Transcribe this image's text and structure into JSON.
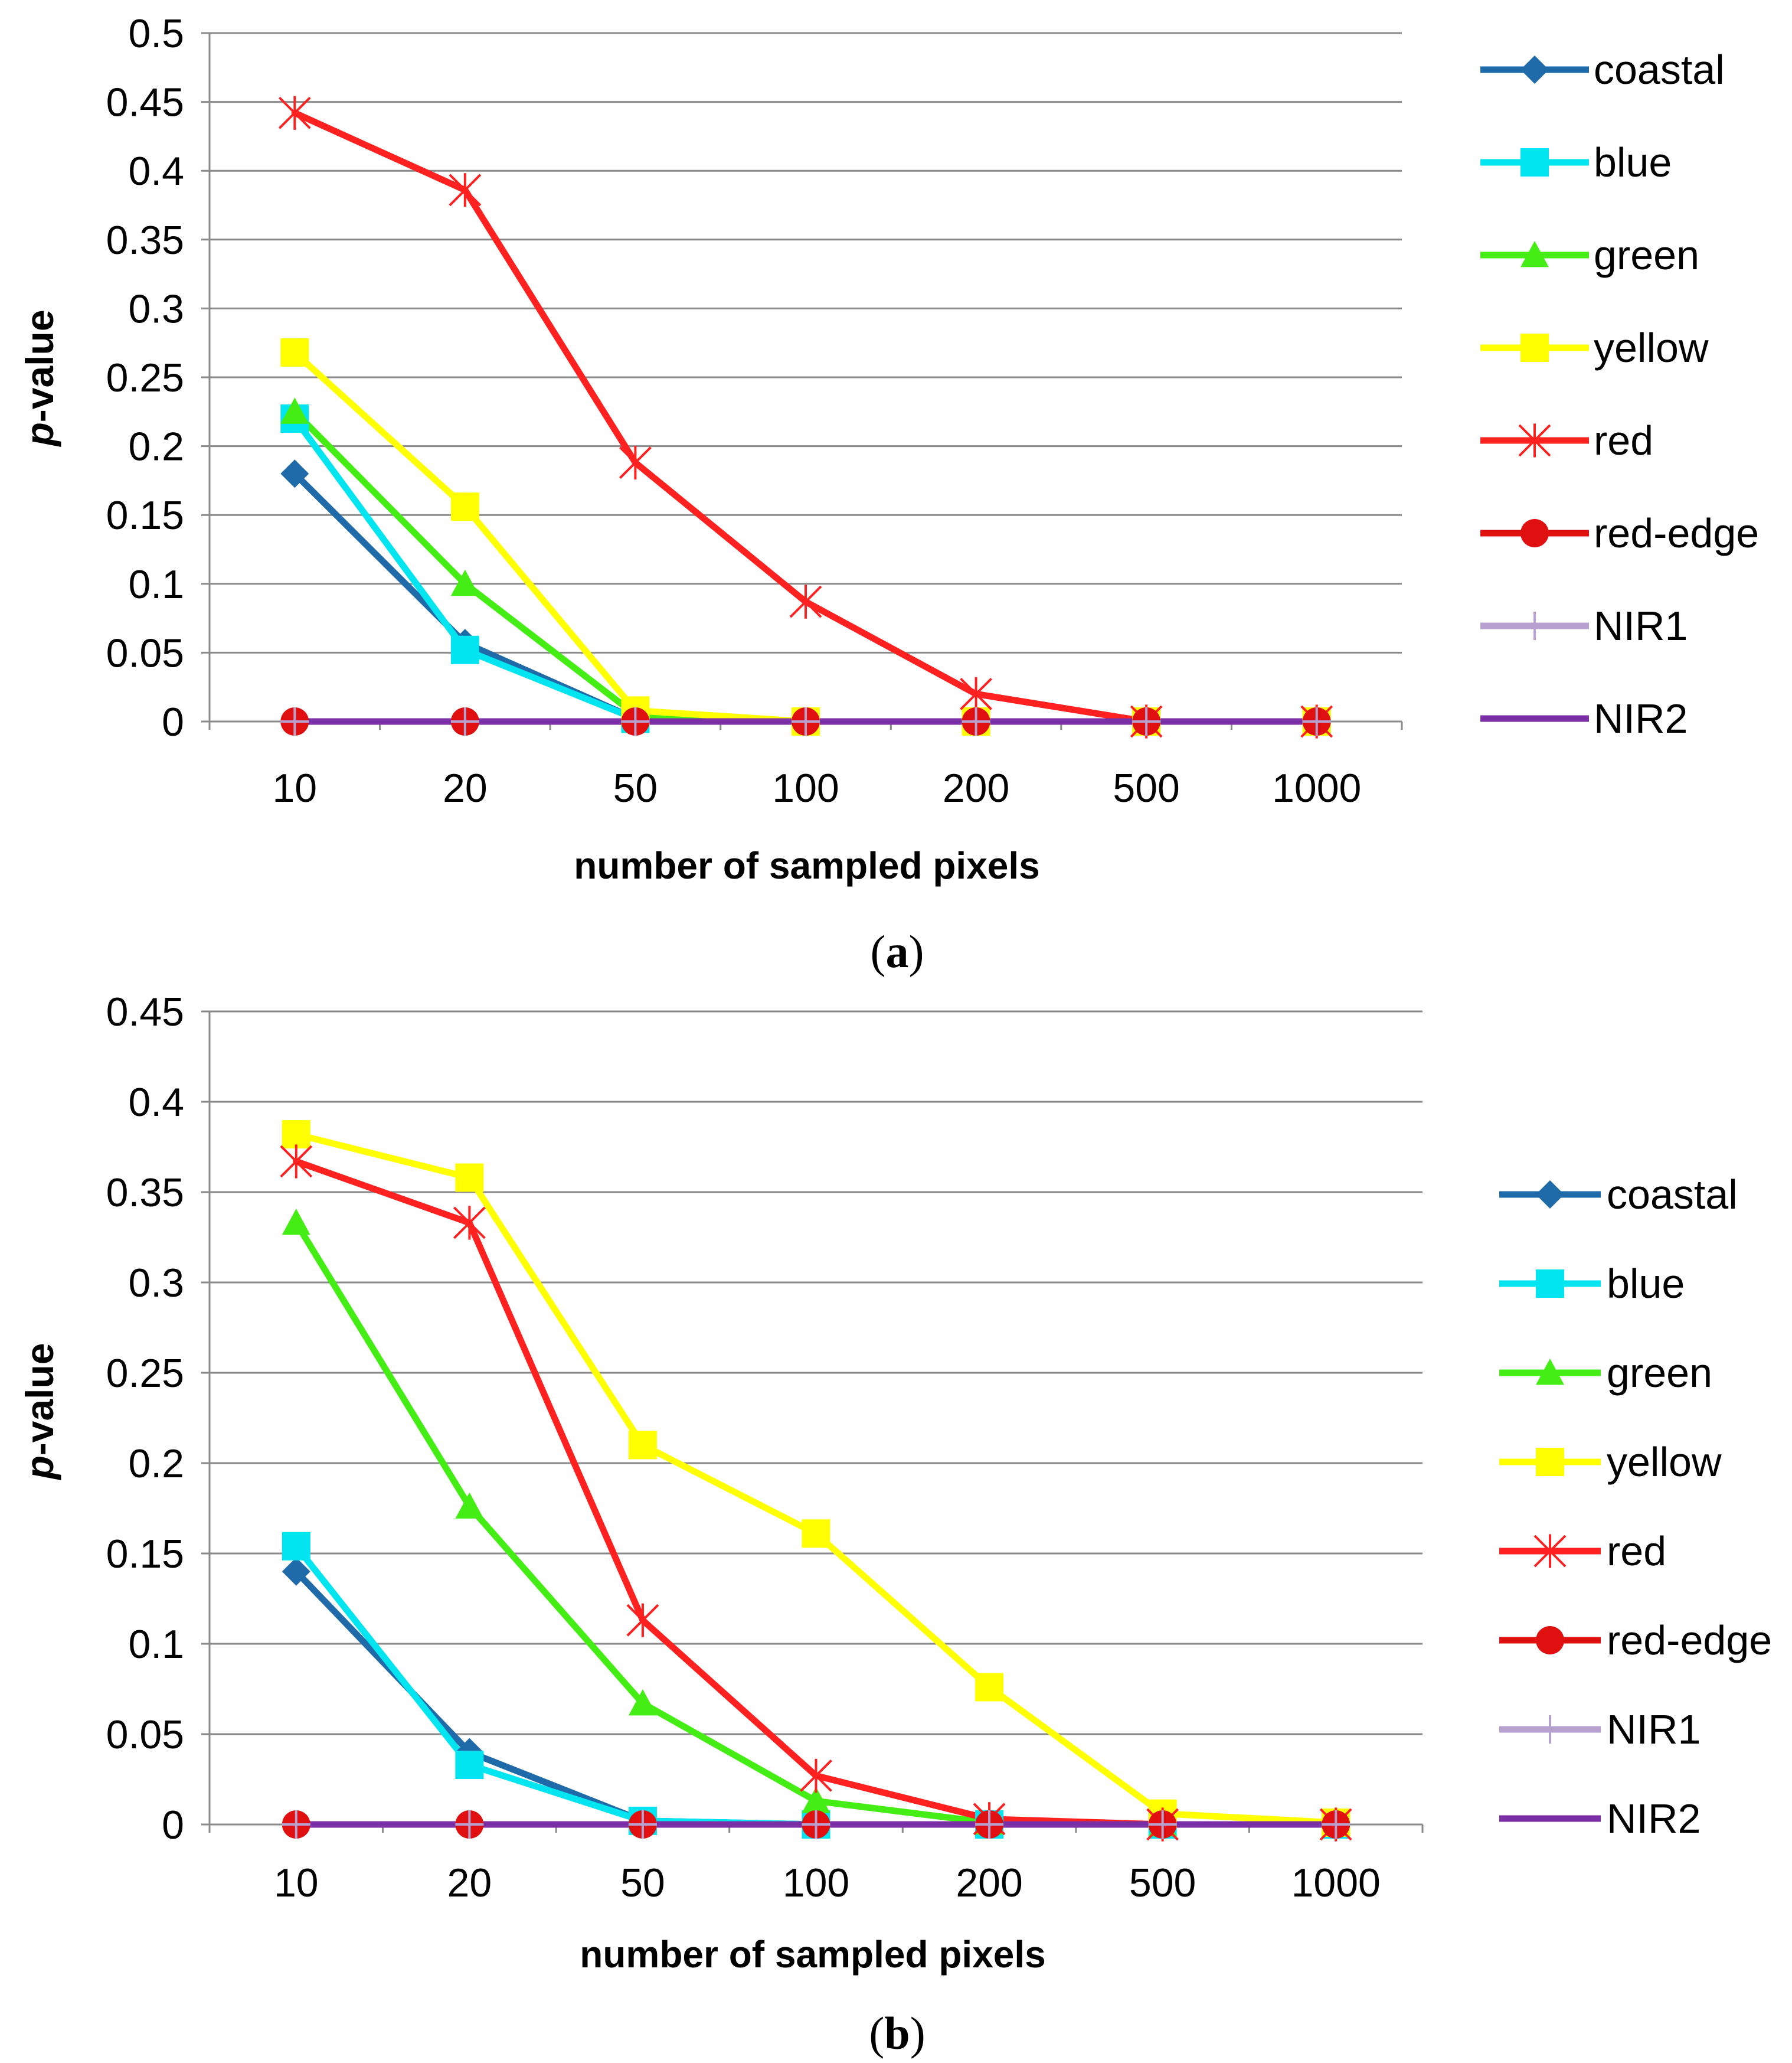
{
  "figure": {
    "label_a": "a",
    "label_b": "b"
  },
  "chart_data": [
    {
      "type": "line",
      "panel": "a",
      "categories": [
        "10",
        "20",
        "50",
        "100",
        "200",
        "500",
        "1000"
      ],
      "xlabel": "number of sampled pixels",
      "ylabel_italic": "p",
      "ylabel_rest": "-value",
      "ylim": [
        0,
        0.5
      ],
      "yticks": [
        0,
        0.05,
        0.1,
        0.15,
        0.2,
        0.25,
        0.3,
        0.35,
        0.4,
        0.45,
        0.5
      ],
      "ytick_labels": [
        "0",
        "0.05",
        "0.1",
        "0.15",
        "0.2",
        "0.25",
        "0.3",
        "0.35",
        "0.4",
        "0.45",
        "0.5"
      ],
      "grid": true,
      "legend_position": "right",
      "series": [
        {
          "name": "coastal",
          "color": "#1F6AA8",
          "marker": "diamond",
          "values": [
            0.18,
            0.057,
            0.002,
            0,
            0,
            0,
            0
          ]
        },
        {
          "name": "blue",
          "color": "#00E5F0",
          "marker": "square",
          "values": [
            0.22,
            0.052,
            0.002,
            0,
            0,
            0,
            0
          ]
        },
        {
          "name": "green",
          "color": "#44EE14",
          "marker": "triangle",
          "values": [
            0.225,
            0.1,
            0.005,
            0,
            0,
            0,
            0
          ]
        },
        {
          "name": "yellow",
          "color": "#FFFF00",
          "marker": "square",
          "values": [
            0.268,
            0.156,
            0.008,
            0,
            0,
            0,
            0
          ]
        },
        {
          "name": "red",
          "color": "#FF2020",
          "marker": "star",
          "values": [
            0.442,
            0.386,
            0.188,
            0.087,
            0.02,
            0,
            0
          ]
        },
        {
          "name": "red-edge",
          "color": "#E01010",
          "marker": "circle",
          "values": [
            0,
            0,
            0,
            0,
            0,
            0,
            0
          ]
        },
        {
          "name": "NIR1",
          "color": "#B7A2CF",
          "marker": "plus",
          "values": [
            0,
            0,
            0,
            0,
            0,
            0,
            0
          ]
        },
        {
          "name": "NIR2",
          "color": "#7B2FA5",
          "marker": "none",
          "values": [
            0,
            0,
            0,
            0,
            0,
            0,
            0
          ]
        }
      ]
    },
    {
      "type": "line",
      "panel": "b",
      "categories": [
        "10",
        "20",
        "50",
        "100",
        "200",
        "500",
        "1000"
      ],
      "xlabel": "number of sampled pixels",
      "ylabel_italic": "p",
      "ylabel_rest": "-value",
      "ylim": [
        0,
        0.45
      ],
      "yticks": [
        0,
        0.05,
        0.1,
        0.15,
        0.2,
        0.25,
        0.3,
        0.35,
        0.4,
        0.45
      ],
      "ytick_labels": [
        "0",
        "0.05",
        "0.1",
        "0.15",
        "0.2",
        "0.25",
        "0.3",
        "0.35",
        "0.4",
        "0.45"
      ],
      "grid": true,
      "legend_position": "right",
      "series": [
        {
          "name": "coastal",
          "color": "#1F6AA8",
          "marker": "diamond",
          "values": [
            0.14,
            0.04,
            0.002,
            0,
            0,
            0,
            0
          ]
        },
        {
          "name": "blue",
          "color": "#00E5F0",
          "marker": "square",
          "values": [
            0.154,
            0.033,
            0.002,
            0,
            0,
            0,
            0
          ]
        },
        {
          "name": "green",
          "color": "#44EE14",
          "marker": "triangle",
          "values": [
            0.333,
            0.176,
            0.067,
            0.013,
            0.001,
            0,
            0
          ]
        },
        {
          "name": "yellow",
          "color": "#FFFF00",
          "marker": "square",
          "values": [
            0.382,
            0.358,
            0.21,
            0.161,
            0.076,
            0.006,
            0.001
          ]
        },
        {
          "name": "red",
          "color": "#FF2020",
          "marker": "star",
          "values": [
            0.367,
            0.333,
            0.113,
            0.027,
            0.003,
            0,
            0
          ]
        },
        {
          "name": "red-edge",
          "color": "#E01010",
          "marker": "circle",
          "values": [
            0,
            0,
            0,
            0,
            0,
            0,
            0
          ]
        },
        {
          "name": "NIR1",
          "color": "#B7A2CF",
          "marker": "plus",
          "values": [
            0,
            0,
            0,
            0,
            0,
            0,
            0
          ]
        },
        {
          "name": "NIR2",
          "color": "#7B2FA5",
          "marker": "none",
          "values": [
            0,
            0,
            0,
            0,
            0,
            0,
            0
          ]
        }
      ]
    }
  ]
}
